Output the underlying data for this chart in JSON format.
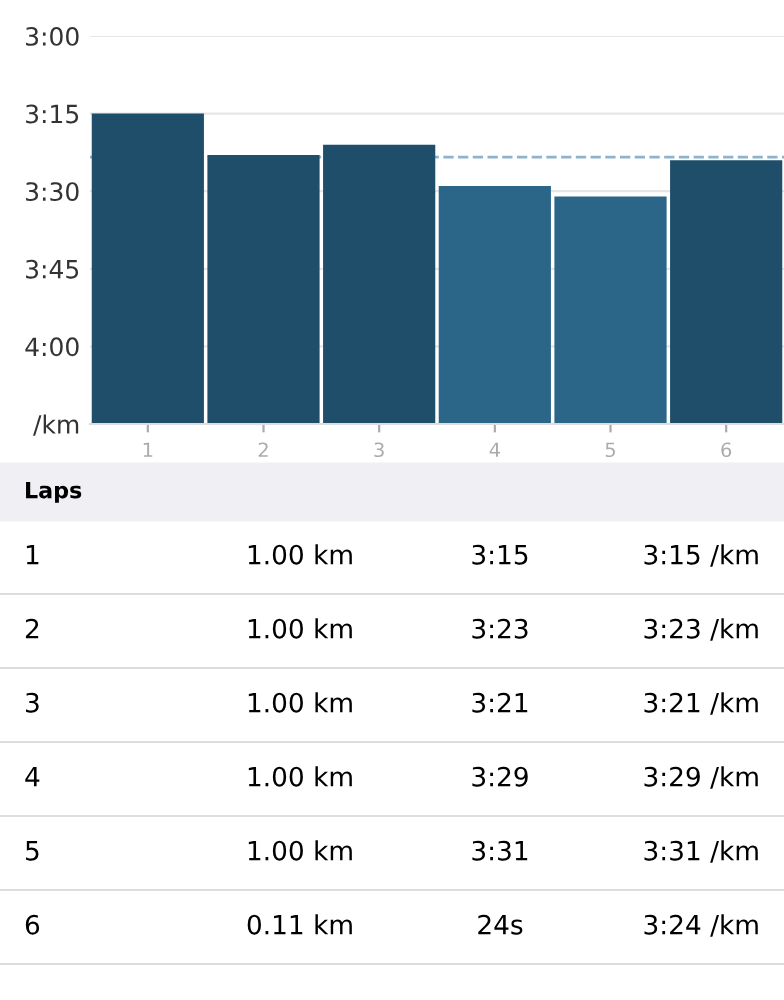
{
  "chart_data": {
    "type": "bar",
    "categories": [
      "1",
      "2",
      "3",
      "4",
      "5",
      "6"
    ],
    "base": [
      4.25,
      4.25,
      4.25,
      4.25,
      4.25,
      4.25
    ],
    "values": [
      -1.0,
      -0.867,
      -0.9,
      -0.767,
      -0.733,
      -0.85
    ],
    "colors": [
      "#1f4e6b",
      "#1f4e6b",
      "#1f4e6b",
      "#2b6689",
      "#2b6689",
      "#1f4e6b"
    ],
    "ylim": [
      4.25,
      3.0
    ],
    "yticks": [
      {
        "value": 3,
        "label": "3:00"
      },
      {
        "value": 3.25,
        "label": "3:15"
      },
      {
        "value": 3.5,
        "label": "3:30"
      },
      {
        "value": 3.75,
        "label": "3:45"
      },
      {
        "value": 4,
        "label": "4:00"
      },
      {
        "value": 4.25,
        "label": "/km"
      }
    ],
    "grid": "y",
    "ref_lines": [
      {
        "axis": "y",
        "value": 3.39,
        "color": "#8fb3cc",
        "line_style": "dashed"
      }
    ],
    "annotations": [
      "Laps",
      "1.00 km",
      "3:15",
      "3:15 /km",
      "1.00 km",
      "3:23",
      "3:23 /km",
      "1.00 km",
      "3:21",
      "3:21 /km",
      "1.00 km",
      "3:29",
      "3:29 /km",
      "1.00 km",
      "3:31",
      "3:31 /km",
      "0.11 km",
      "24s",
      "3:24 /km"
    ]
  }
}
